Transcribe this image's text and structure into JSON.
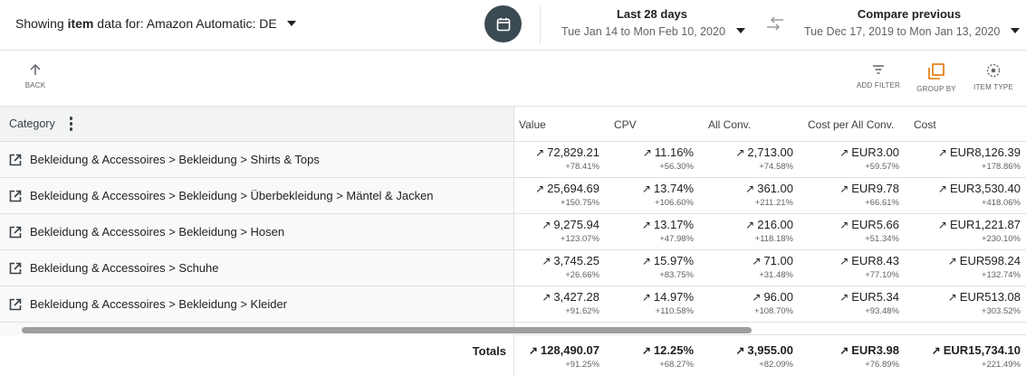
{
  "header": {
    "showing_prefix": "Showing",
    "showing_bold": "item",
    "showing_suffix": "data for: Amazon Automatic: DE",
    "range_title": "Last 28 days",
    "range_dates": "Tue Jan 14 to Mon Feb 10, 2020",
    "compare_title": "Compare previous",
    "compare_dates": "Tue Dec 17, 2019 to Mon Jan 13, 2020",
    "calendar_icon": "calendar-icon",
    "swap_icon": "compare-swap-icon"
  },
  "toolbar": {
    "back_label": "BACK",
    "filter_label": "ADD FILTER",
    "group_label": "GROUP BY",
    "type_label": "ITEM TYPE",
    "group_accent": "#e37400"
  },
  "table": {
    "category_header": "Category",
    "columns": [
      "Value",
      "CPV",
      "All Conv.",
      "Cost per All Conv.",
      "Cost"
    ],
    "rows": [
      {
        "category": "Bekleidung & Accessoires > Bekleidung > Shirts & Tops",
        "cells": [
          [
            "72,829.21",
            "+78.41%"
          ],
          [
            "11.16%",
            "+56.30%"
          ],
          [
            "2,713.00",
            "+74.58%"
          ],
          [
            "EUR3.00",
            "+59.57%"
          ],
          [
            "EUR8,126.39",
            "+178.86%"
          ]
        ]
      },
      {
        "category": "Bekleidung & Accessoires > Bekleidung > Überbekleidung > Mäntel & Jacken",
        "cells": [
          [
            "25,694.69",
            "+150.75%"
          ],
          [
            "13.74%",
            "+106.60%"
          ],
          [
            "361.00",
            "+211.21%"
          ],
          [
            "EUR9.78",
            "+66.61%"
          ],
          [
            "EUR3,530.40",
            "+418.06%"
          ]
        ]
      },
      {
        "category": "Bekleidung & Accessoires > Bekleidung > Hosen",
        "cells": [
          [
            "9,275.94",
            "+123.07%"
          ],
          [
            "13.17%",
            "+47.98%"
          ],
          [
            "216.00",
            "+118.18%"
          ],
          [
            "EUR5.66",
            "+51.34%"
          ],
          [
            "EUR1,221.87",
            "+230.10%"
          ]
        ]
      },
      {
        "category": "Bekleidung & Accessoires > Schuhe",
        "cells": [
          [
            "3,745.25",
            "+26.66%"
          ],
          [
            "15.97%",
            "+83.75%"
          ],
          [
            "71.00",
            "+31.48%"
          ],
          [
            "EUR8.43",
            "+77.10%"
          ],
          [
            "EUR598.24",
            "+132.74%"
          ]
        ]
      },
      {
        "category": "Bekleidung & Accessoires > Bekleidung > Kleider",
        "cells": [
          [
            "3,427.28",
            "+91.62%"
          ],
          [
            "14.97%",
            "+110.58%"
          ],
          [
            "96.00",
            "+108.70%"
          ],
          [
            "EUR5.34",
            "+93.48%"
          ],
          [
            "EUR513.08",
            "+303.52%"
          ]
        ]
      }
    ],
    "totals_label": "Totals",
    "totals": [
      [
        "128,490.07",
        "+91.25%"
      ],
      [
        "12.25%",
        "+68.27%"
      ],
      [
        "3,955.00",
        "+82.09%"
      ],
      [
        "EUR3.98",
        "+76.89%"
      ],
      [
        "EUR15,734.10",
        "+221.49%"
      ]
    ],
    "trend_arrow": "↗"
  }
}
